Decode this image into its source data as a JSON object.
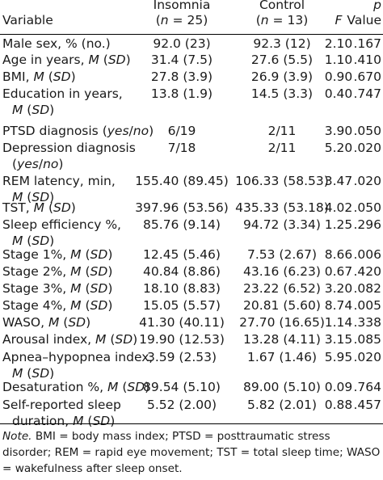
{
  "header": {
    "variable": "Variable",
    "insomnia": "Insomnia",
    "insomnia_n": "(n = 25)",
    "control": "Control",
    "control_n": "(n = 13)",
    "f": "F",
    "p": "p",
    "p_value": "Value"
  },
  "rows": [
    {
      "label": [
        "Male sex, % (no.)"
      ],
      "insomnia": "92.0 (23)",
      "control": "92.3 (12)",
      "f": "2.10",
      "p": ".167"
    },
    {
      "label": [
        "Age in years, M (SD)"
      ],
      "insomnia": "31.4 (7.5)",
      "control": "27.6 (5.5)",
      "f": "1.10",
      "p": ".410"
    },
    {
      "label": [
        "BMI, M (SD)"
      ],
      "insomnia": "27.8 (3.9)",
      "control": "26.9 (3.9)",
      "f": "0.90",
      "p": ".670"
    },
    {
      "label": [
        "Education in years,",
        "M (SD)"
      ],
      "insomnia": "13.8 (1.9)",
      "control": "14.5 (3.3)",
      "f": "0.40",
      "p": ".747"
    },
    {
      "label": [
        "PTSD diagnosis (yes/no)"
      ],
      "insomnia": "6/19",
      "control": "2/11",
      "f": "3.90",
      "p": ".050"
    },
    {
      "label": [
        "Depression diagnosis",
        "(yes/no)"
      ],
      "insomnia": "7/18",
      "control": "2/11",
      "f": "5.20",
      "p": ".020"
    },
    {
      "label": [
        "REM latency, min,",
        "M (SD)"
      ],
      "insomnia": "155.40 (89.45)",
      "control": "106.33 (58.53)",
      "f": "3.47",
      "p": ".020"
    },
    {
      "label": [
        "TST, M (SD)"
      ],
      "insomnia": "397.96 (53.56)",
      "control": "435.33 (53.18)",
      "f": "4.02",
      "p": ".050"
    },
    {
      "label": [
        "Sleep efficiency %,",
        "M (SD)"
      ],
      "insomnia": "85.76 (9.14)",
      "control": "94.72 (3.34)",
      "f": "1.25",
      "p": ".296"
    },
    {
      "label": [
        "Stage 1%, M (SD)"
      ],
      "insomnia": "12.45 (5.46)",
      "control": "7.53 (2.67)",
      "f": "8.66",
      "p": ".006"
    },
    {
      "label": [
        "Stage 2%, M (SD)"
      ],
      "insomnia": "40.84 (8.86)",
      "control": "43.16 (6.23)",
      "f": "0.67",
      "p": ".420"
    },
    {
      "label": [
        "Stage 3%, M (SD)"
      ],
      "insomnia": "18.10 (8.83)",
      "control": "23.22 (6.52)",
      "f": "3.20",
      "p": ".082"
    },
    {
      "label": [
        "Stage 4%, M (SD)"
      ],
      "insomnia": "15.05 (5.57)",
      "control": "20.81 (5.60)",
      "f": "8.74",
      "p": ".005"
    },
    {
      "label": [
        "WASO, M (SD)"
      ],
      "insomnia": "41.30 (40.11)",
      "control": "27.70 (16.65)",
      "f": "1.14",
      "p": ".338"
    },
    {
      "label": [
        "Arousal index, M (SD)"
      ],
      "insomnia": "19.90 (12.53)",
      "control": "13.28 (4.11)",
      "f": "3.15",
      "p": ".085"
    },
    {
      "label": [
        "Apnea–hypopnea index,",
        "M (SD)"
      ],
      "insomnia": "3.59 (2.53)",
      "control": "1.67 (1.46)",
      "f": "5.95",
      "p": ".020"
    },
    {
      "label": [
        "Desaturation %, M (SD)"
      ],
      "insomnia": "89.54 (5.10)",
      "control": "89.00 (5.10)",
      "f": "0.09",
      "p": ".764"
    },
    {
      "label": [
        "Self-reported sleep",
        "duration, M (SD)"
      ],
      "insomnia": "5.52 (2.00)",
      "control": "5.82 (2.01)",
      "f": "0.88",
      "p": ".457"
    }
  ],
  "note": {
    "prefix": "Note.",
    "text": " BMI = body mass index; PTSD = posttraumatic stress disorder; REM = rapid eye movement; TST = total sleep time; WASO = wakefulness after sleep onset."
  }
}
